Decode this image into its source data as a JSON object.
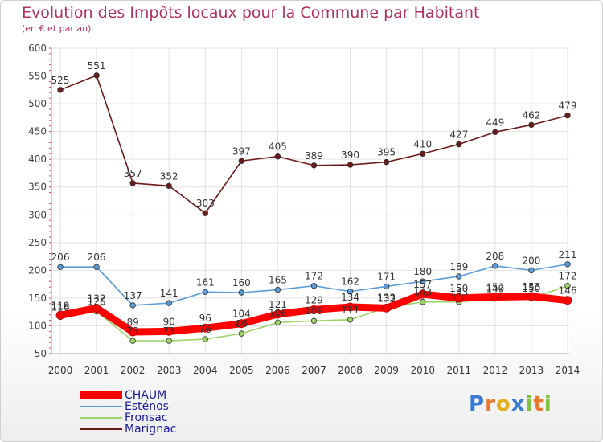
{
  "header": {
    "title": "Evolution des Impôts locaux pour la Commune par Habitant",
    "subtitle": "(en € et par an)"
  },
  "brand": {
    "letters": [
      "P",
      "r",
      "o",
      "x",
      "i",
      "t",
      "i"
    ],
    "colors": [
      "#3a7bd5",
      "#e8762c",
      "#e0b020",
      "#3a7bd5",
      "#7cc243",
      "#e8762c",
      "#7cc243"
    ]
  },
  "chart_data": {
    "type": "line",
    "title": "Evolution des Impôts locaux pour la Commune par Habitant",
    "subtitle": "(en € et par an)",
    "xlabel": "",
    "ylabel": "",
    "ylim": [
      50,
      600
    ],
    "yticks": [
      50,
      100,
      150,
      200,
      250,
      300,
      350,
      400,
      450,
      500,
      550,
      600
    ],
    "grid": true,
    "legend_position": "bottom-left",
    "categories": [
      "2000",
      "2001",
      "2002",
      "2003",
      "2004",
      "2005",
      "2006",
      "2007",
      "2008",
      "2009",
      "2010",
      "2011",
      "2012",
      "2013",
      "2014"
    ],
    "series": [
      {
        "name": "Marignac",
        "color": "#6b1a1a",
        "legend_color": "#1a1aa0",
        "values": [
          525,
          551,
          357,
          352,
          303,
          397,
          405,
          389,
          390,
          395,
          410,
          427,
          449,
          462,
          479
        ],
        "labels": [
          "525",
          "551",
          "357",
          "352",
          "303",
          "397",
          "405",
          "389",
          "390",
          "395",
          "410",
          "427",
          "449",
          "462",
          "479"
        ]
      },
      {
        "name": "Esténos",
        "color": "#5b9bd5",
        "legend_color": "#1a1aa0",
        "values": [
          206,
          206,
          137,
          141,
          161,
          160,
          165,
          172,
          162,
          171,
          180,
          189,
          208,
          200,
          211
        ],
        "labels": [
          "206",
          "206",
          "137",
          "141",
          "161",
          "160",
          "165",
          "172",
          "162",
          "171",
          "180",
          "189",
          "208",
          "200",
          "211"
        ]
      },
      {
        "name": "Fronsac",
        "color": "#9ed36a",
        "legend_color": "#1a1aa0",
        "values": [
          116,
          126,
          73,
          73,
          76,
          86,
          106,
          109,
          111,
          133,
          143,
          143,
          149,
          150,
          172
        ],
        "labels": [
          "116",
          "126",
          "73",
          "73",
          "76",
          "86",
          "106",
          "109",
          "111",
          "133",
          "143",
          "143",
          "149",
          "150",
          "172"
        ]
      },
      {
        "name": "CHAUM",
        "color": "#ff0000",
        "legend_color": "#1a1aa0",
        "values": [
          119,
          132,
          89,
          90,
          96,
          104,
          121,
          129,
          134,
          132,
          157,
          150,
          152,
          153,
          146
        ],
        "labels": [
          "119",
          "132",
          "89",
          "90",
          "96",
          "104",
          "121",
          "129",
          "134",
          "132",
          "157",
          "150",
          "152",
          "153",
          "146"
        ]
      }
    ]
  },
  "legend": {
    "items": [
      {
        "label": "CHAUM",
        "color": "#ff0000",
        "weight": 10
      },
      {
        "label": "Esténos",
        "color": "#5b9bd5",
        "weight": 2
      },
      {
        "label": "Fronsac",
        "color": "#9ed36a",
        "weight": 2
      },
      {
        "label": "Marignac",
        "color": "#6b1a1a",
        "weight": 2
      }
    ],
    "text_color": "#1a1aa0"
  }
}
